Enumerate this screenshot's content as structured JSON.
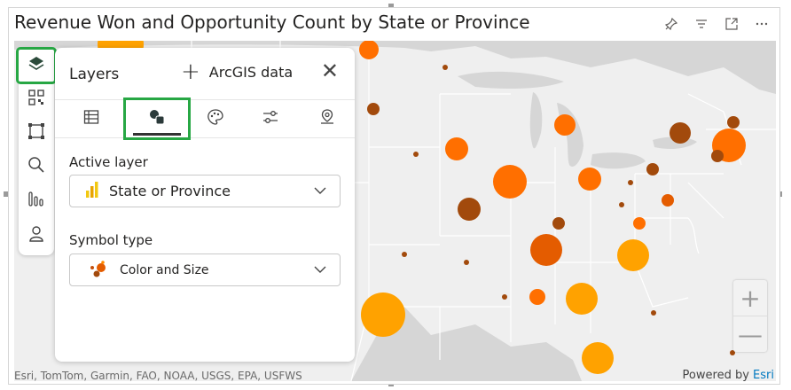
{
  "visual": {
    "title": "Revenue Won and Opportunity Count by State or Province",
    "header_icons": [
      "pin-icon",
      "filter-icon",
      "focus-mode-icon",
      "more-options-icon"
    ]
  },
  "map": {
    "attribution": "Esri, TomTom, Garmin, FAO, NOAA, USGS, EPA, USFWS",
    "powered_by": "Powered by",
    "esri_link": "Esri",
    "zoom_in": "+",
    "zoom_out": "—",
    "colors": {
      "land": "#efefef",
      "background": "#d6d6d6",
      "low": "#ffa200",
      "mid": "#ff6f00",
      "high": "#e45c00",
      "dark": "#a24a0c"
    }
  },
  "toolbar": {
    "buttons": [
      "layers-icon",
      "qr-icon",
      "selection-icon",
      "search-icon",
      "chart-icon",
      "reference-icon"
    ]
  },
  "layers_panel": {
    "title": "Layers",
    "arcgis_label": "ArcGIS data",
    "tabs": [
      "table-icon",
      "symbology-icon",
      "palette-icon",
      "settings-icon",
      "location-icon"
    ],
    "active_layer_label": "Active layer",
    "active_layer_value": "State or Province",
    "symbol_type_label": "Symbol type",
    "symbol_type_value": "Color and Size"
  }
}
